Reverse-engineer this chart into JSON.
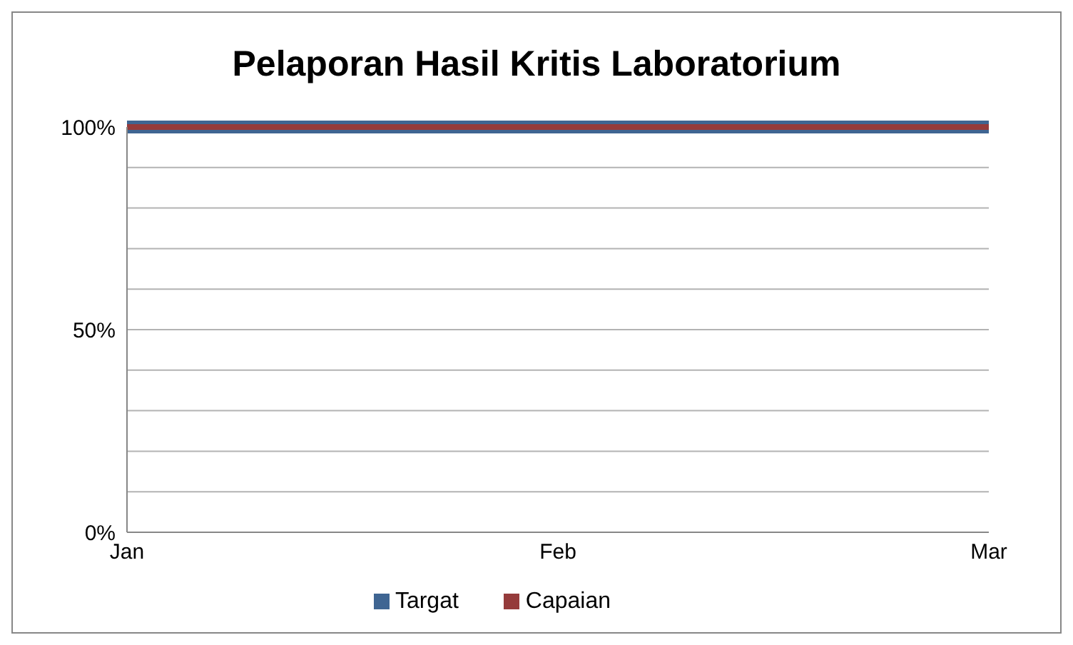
{
  "chart_data": {
    "type": "line",
    "title": "Pelaporan Hasil Kritis Laboratorium",
    "categories": [
      "Jan",
      "Feb",
      "Mar"
    ],
    "series": [
      {
        "name": "Targat",
        "color": "#3f6592",
        "values": [
          100,
          100,
          100
        ]
      },
      {
        "name": "Capaian",
        "color": "#953b3b",
        "values": [
          100,
          100,
          100
        ]
      }
    ],
    "ylim": [
      0,
      100
    ],
    "yticks": [
      {
        "value": 0,
        "label": "0%"
      },
      {
        "value": 10,
        "label": null
      },
      {
        "value": 20,
        "label": null
      },
      {
        "value": 30,
        "label": null
      },
      {
        "value": 40,
        "label": null
      },
      {
        "value": 50,
        "label": "50%"
      },
      {
        "value": 60,
        "label": null
      },
      {
        "value": 70,
        "label": null
      },
      {
        "value": 80,
        "label": null
      },
      {
        "value": 90,
        "label": null
      },
      {
        "value": 100,
        "label": "100%"
      }
    ],
    "grid": "y",
    "legend": "bottom"
  }
}
